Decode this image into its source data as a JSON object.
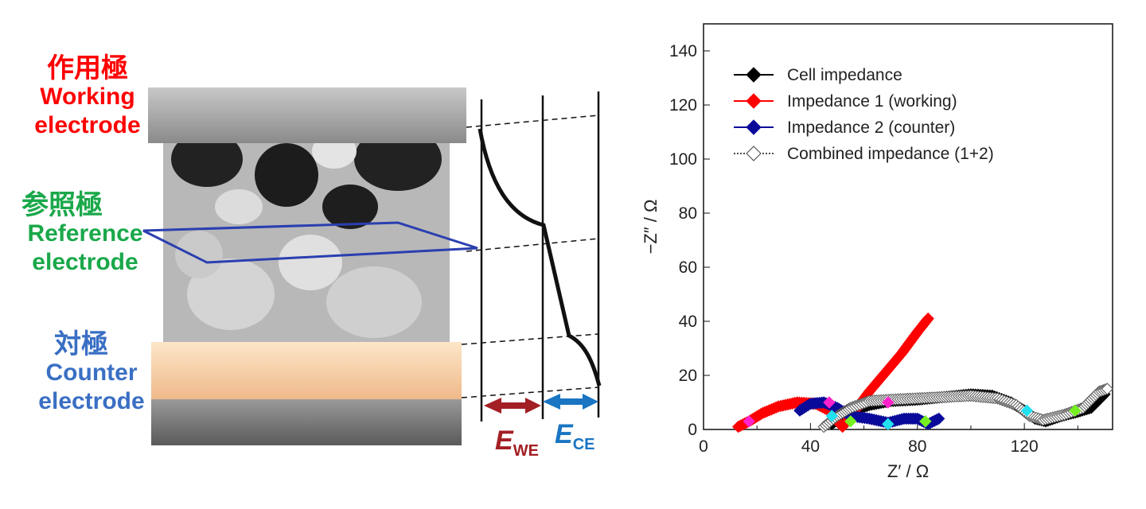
{
  "labels": {
    "working": {
      "jp": "作用極",
      "en1": "Working",
      "en2": "electrode",
      "color": "#ff0000"
    },
    "reference": {
      "jp": "参照極",
      "en1": "Reference",
      "en2": "electrode",
      "color": "#1aa84a"
    },
    "counter": {
      "jp": "対極",
      "en1": "Counter",
      "en2": "electrode",
      "color": "#3a6fc4"
    }
  },
  "potential": {
    "ewe_main": "E",
    "ewe_sub": "WE",
    "ewe_color": "#a31f24",
    "ece_main": "E",
    "ece_sub": "CE",
    "ece_color": "#1a75c2"
  },
  "chart_data": {
    "type": "scatter",
    "xlabel": "Z′ / Ω",
    "ylabel": "−Z″ / Ω",
    "xlim": [
      0,
      153
    ],
    "ylim": [
      0,
      150
    ],
    "xticks": [
      0,
      40,
      80,
      120
    ],
    "yticks": [
      0,
      20,
      40,
      60,
      80,
      100,
      120,
      140
    ],
    "legend_position": "top-left",
    "series": [
      {
        "name": "Cell impedance",
        "color": "#000000",
        "points": [
          [
            48,
            2
          ],
          [
            52,
            5
          ],
          [
            56,
            7
          ],
          [
            62,
            9
          ],
          [
            70,
            10.5
          ],
          [
            80,
            11
          ],
          [
            90,
            12
          ],
          [
            100,
            13
          ],
          [
            108,
            12.5
          ],
          [
            115,
            10
          ],
          [
            120,
            7
          ],
          [
            124,
            4
          ],
          [
            128,
            3
          ],
          [
            134,
            5
          ],
          [
            140,
            6.5
          ],
          [
            145,
            8
          ],
          [
            150,
            13
          ]
        ]
      },
      {
        "name": "Impedance 1 (working)",
        "color": "#ff0000",
        "points": [
          [
            13,
            1
          ],
          [
            17,
            3
          ],
          [
            22,
            6
          ],
          [
            28,
            8.5
          ],
          [
            35,
            10
          ],
          [
            42,
            9.5
          ],
          [
            47,
            7
          ],
          [
            50,
            3
          ],
          [
            52,
            1
          ],
          [
            56,
            6
          ],
          [
            62,
            14
          ],
          [
            68,
            21
          ],
          [
            74,
            28
          ],
          [
            80,
            36
          ],
          [
            84,
            41
          ]
        ]
      },
      {
        "name": "Impedance 2 (counter)",
        "color": "#0a0a9a",
        "points": [
          [
            36,
            7
          ],
          [
            40,
            9.5
          ],
          [
            45,
            10
          ],
          [
            50,
            8
          ],
          [
            55,
            5
          ],
          [
            62,
            4
          ],
          [
            69,
            2.5
          ],
          [
            75,
            4
          ],
          [
            80,
            4
          ],
          [
            84,
            2
          ],
          [
            88,
            4
          ]
        ]
      },
      {
        "name": "Combined impedance (1+2)",
        "color": "#555555",
        "hollow": true,
        "points": [
          [
            45,
            1
          ],
          [
            50,
            5
          ],
          [
            55,
            8
          ],
          [
            62,
            10.5
          ],
          [
            70,
            11
          ],
          [
            80,
            11.5
          ],
          [
            90,
            12
          ],
          [
            100,
            12.5
          ],
          [
            110,
            11.5
          ],
          [
            117,
            9
          ],
          [
            122,
            5
          ],
          [
            127,
            3.5
          ],
          [
            135,
            5.5
          ],
          [
            142,
            8
          ],
          [
            148,
            14
          ],
          [
            151,
            15
          ]
        ]
      }
    ],
    "markers": [
      {
        "color": "#ff22cc",
        "points": [
          [
            17,
            3
          ],
          [
            47,
            10
          ],
          [
            69,
            10
          ]
        ]
      },
      {
        "color": "#22e0f0",
        "points": [
          [
            48,
            5
          ],
          [
            69,
            2
          ],
          [
            121,
            7
          ]
        ]
      },
      {
        "color": "#77ee22",
        "points": [
          [
            55,
            3
          ],
          [
            83,
            3
          ],
          [
            139,
            7
          ]
        ]
      }
    ]
  }
}
